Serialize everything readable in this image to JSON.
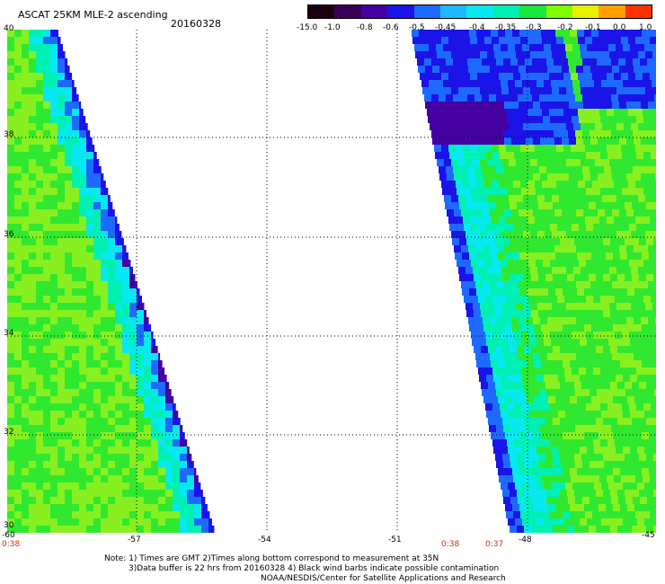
{
  "header": {
    "title": "ASCAT 25KM MLE-2 ascending",
    "date": "20160328"
  },
  "colorbar": {
    "labels": [
      "-15.0",
      "-1.0",
      "-0.8",
      "-0.6",
      "-0.5",
      "-0.45",
      "-0.4",
      "-0.35",
      "-0.3",
      "-0.2",
      "-0.1",
      "0.0",
      "1.0"
    ],
    "colors": [
      "#1a0010",
      "#3a0058",
      "#4400a0",
      "#1a14e8",
      "#1e6aff",
      "#20b8ff",
      "#08e8f0",
      "#00f0b4",
      "#18e840",
      "#80ff00",
      "#e8f000",
      "#ffa000",
      "#ff3000"
    ]
  },
  "axes": {
    "lat_labels": [
      "40",
      "38",
      "36",
      "34",
      "32",
      "30"
    ],
    "lon_labels": [
      "-60",
      "-57",
      "-54",
      "-51",
      "-48",
      "-45"
    ]
  },
  "times": {
    "left": "0:38",
    "middle": "0:38",
    "right": "0:37"
  },
  "notes": [
    "Note: 1) Times are GMT 2)Times along bottom correspond to measurement at 35N",
    "3)Data buffer is 22 hrs from 20160328 4) Black wind barbs indicate possible contamination",
    "NOAA/NESDIS/Center for Satellite Applications and Research"
  ],
  "palette": {
    "green": "#30e830",
    "yellow_green": "#88f020",
    "cyan": "#08e8f0",
    "teal": "#00f0b4",
    "blue": "#1e6aff",
    "dark_blue": "#1a14e8",
    "purple": "#4400a0"
  }
}
